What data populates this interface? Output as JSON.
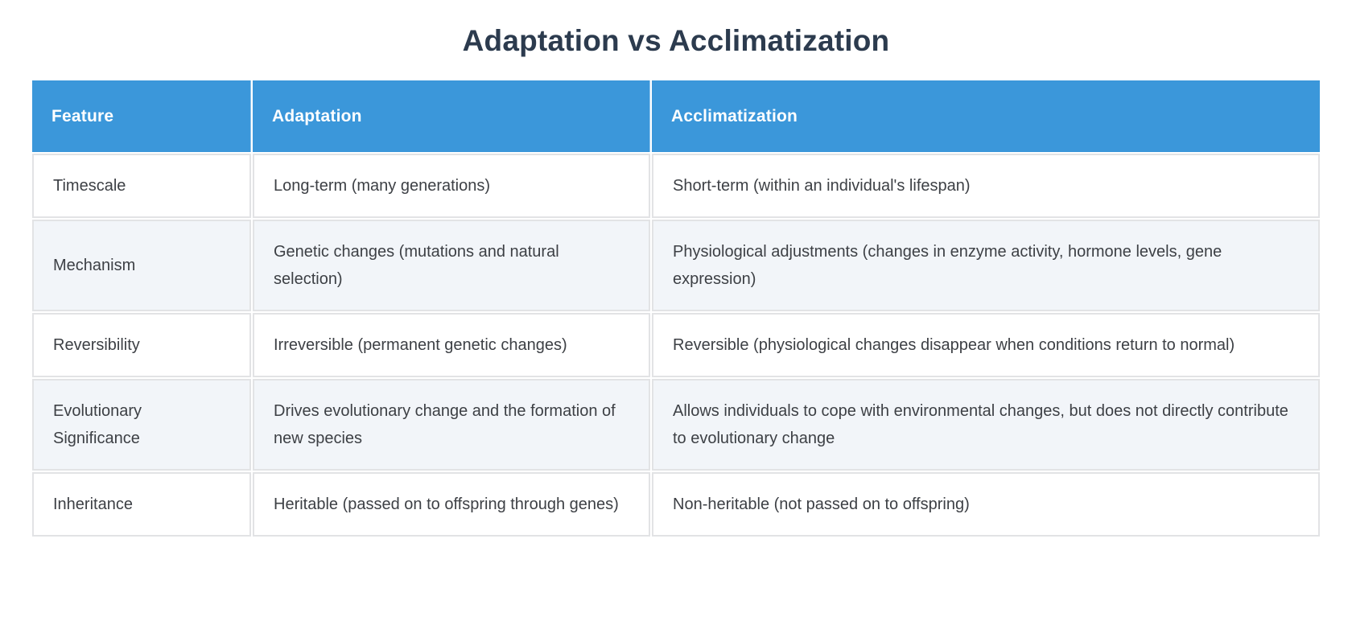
{
  "page": {
    "title": "Adaptation vs Acclimatization"
  },
  "table": {
    "columns": [
      {
        "label": "Feature"
      },
      {
        "label": "Adaptation"
      },
      {
        "label": "Acclimatization"
      }
    ],
    "rows": [
      {
        "feature": "Timescale",
        "adaptation": "Long-term (many generations)",
        "acclimatization": "Short-term (within an individual's lifespan)"
      },
      {
        "feature": "Mechanism",
        "adaptation": "Genetic changes (mutations and natural selection)",
        "acclimatization": "Physiological adjustments (changes in enzyme activity, hormone levels, gene expression)"
      },
      {
        "feature": "Reversibility",
        "adaptation": "Irreversible (permanent genetic changes)",
        "acclimatization": "Reversible (physiological changes disappear when conditions return to normal)"
      },
      {
        "feature": "Evolutionary Significance",
        "adaptation": "Drives evolutionary change and the formation of new species",
        "acclimatization": "Allows individuals to cope with environmental changes, but does not directly contribute to evolutionary change"
      },
      {
        "feature": "Inheritance",
        "adaptation": "Heritable (passed on to offspring through genes)",
        "acclimatization": "Non-heritable (not passed on to offspring)"
      }
    ]
  },
  "colors": {
    "header_bg": "#3b97da",
    "header_text": "#ffffff",
    "row_bg": "#ffffff",
    "row_alt_bg": "#f2f5f9",
    "cell_border": "#e2e3e5",
    "title_text": "#2c3b4e",
    "body_text": "#3d4045"
  }
}
